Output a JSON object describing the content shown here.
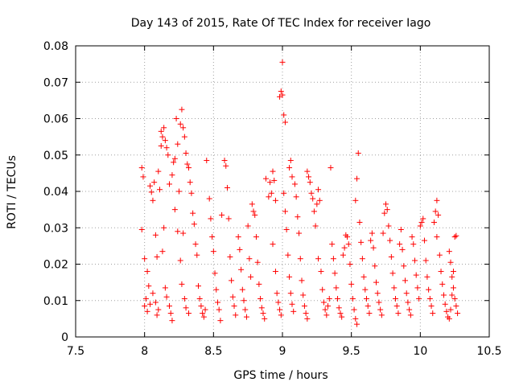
{
  "chart_data": {
    "type": "scatter",
    "title": "Day 143 of 2015, Rate Of TEC Index for receiver Iago",
    "xlabel": "GPS time / hours",
    "ylabel": "ROTI / TECUs",
    "xlim": [
      7.5,
      10.5
    ],
    "ylim": [
      0,
      0.08
    ],
    "x_ticks": [
      "7.5",
      "8",
      "8.5",
      "9",
      "9.5",
      "10",
      "10.5"
    ],
    "y_ticks": [
      "0",
      "0.01",
      "0.02",
      "0.03",
      "0.04",
      "0.05",
      "0.06",
      "0.07",
      "0.08"
    ],
    "grid": true,
    "marker": "+",
    "color": "#ff0000",
    "series": [
      {
        "points": [
          [
            7.98,
            0.0465
          ],
          [
            7.99,
            0.044
          ],
          [
            8.0,
            0.0215
          ],
          [
            7.98,
            0.0295
          ],
          [
            8.02,
            0.018
          ],
          [
            8.03,
            0.014
          ],
          [
            8.01,
            0.0105
          ],
          [
            8.0,
            0.0085
          ],
          [
            8.02,
            0.007
          ],
          [
            8.04,
            0.009
          ],
          [
            8.05,
            0.0398
          ],
          [
            8.06,
            0.0375
          ],
          [
            8.04,
            0.0415
          ],
          [
            8.07,
            0.0425
          ],
          [
            8.08,
            0.028
          ],
          [
            8.09,
            0.022
          ],
          [
            8.06,
            0.012
          ],
          [
            8.08,
            0.0095
          ],
          [
            8.1,
            0.0075
          ],
          [
            8.09,
            0.006
          ],
          [
            8.1,
            0.0455
          ],
          [
            8.11,
            0.0405
          ],
          [
            8.12,
            0.0525
          ],
          [
            8.12,
            0.0565
          ],
          [
            8.13,
            0.055
          ],
          [
            8.14,
            0.0575
          ],
          [
            8.15,
            0.054
          ],
          [
            8.16,
            0.052
          ],
          [
            8.17,
            0.05
          ],
          [
            8.14,
            0.03
          ],
          [
            8.13,
            0.0235
          ],
          [
            8.15,
            0.0135
          ],
          [
            8.16,
            0.011
          ],
          [
            8.18,
            0.0085
          ],
          [
            8.19,
            0.0065
          ],
          [
            8.2,
            0.0045
          ],
          [
            8.18,
            0.042
          ],
          [
            8.2,
            0.0445
          ],
          [
            8.21,
            0.048
          ],
          [
            8.22,
            0.049
          ],
          [
            8.23,
            0.06
          ],
          [
            8.24,
            0.053
          ],
          [
            8.25,
            0.04
          ],
          [
            8.26,
            0.0585
          ],
          [
            8.27,
            0.0625
          ],
          [
            8.28,
            0.0575
          ],
          [
            8.29,
            0.055
          ],
          [
            8.3,
            0.0505
          ],
          [
            8.31,
            0.0475
          ],
          [
            8.32,
            0.0465
          ],
          [
            8.22,
            0.035
          ],
          [
            8.24,
            0.029
          ],
          [
            8.26,
            0.021
          ],
          [
            8.27,
            0.0145
          ],
          [
            8.29,
            0.0105
          ],
          [
            8.3,
            0.008
          ],
          [
            8.32,
            0.0065
          ],
          [
            8.28,
            0.0285
          ],
          [
            8.33,
            0.0425
          ],
          [
            8.34,
            0.0395
          ],
          [
            8.35,
            0.034
          ],
          [
            8.36,
            0.031
          ],
          [
            8.37,
            0.0255
          ],
          [
            8.38,
            0.0225
          ],
          [
            8.39,
            0.014
          ],
          [
            8.4,
            0.0105
          ],
          [
            8.41,
            0.0085
          ],
          [
            8.42,
            0.0065
          ],
          [
            8.43,
            0.0055
          ],
          [
            8.44,
            0.0075
          ],
          [
            8.45,
            0.0485
          ],
          [
            8.47,
            0.038
          ],
          [
            8.48,
            0.0325
          ],
          [
            8.49,
            0.0275
          ],
          [
            8.5,
            0.0235
          ],
          [
            8.51,
            0.0175
          ],
          [
            8.52,
            0.013
          ],
          [
            8.53,
            0.0095
          ],
          [
            8.54,
            0.0075
          ],
          [
            8.55,
            0.0045
          ],
          [
            8.56,
            0.0335
          ],
          [
            8.58,
            0.0485
          ],
          [
            8.59,
            0.047
          ],
          [
            8.6,
            0.041
          ],
          [
            8.61,
            0.0325
          ],
          [
            8.62,
            0.022
          ],
          [
            8.63,
            0.0155
          ],
          [
            8.64,
            0.011
          ],
          [
            8.65,
            0.0085
          ],
          [
            8.66,
            0.006
          ],
          [
            8.68,
            0.0275
          ],
          [
            8.69,
            0.024
          ],
          [
            8.7,
            0.0185
          ],
          [
            8.71,
            0.013
          ],
          [
            8.72,
            0.01
          ],
          [
            8.73,
            0.0075
          ],
          [
            8.74,
            0.0055
          ],
          [
            8.75,
            0.0305
          ],
          [
            8.76,
            0.0215
          ],
          [
            8.77,
            0.0165
          ],
          [
            8.78,
            0.0365
          ],
          [
            8.79,
            0.0345
          ],
          [
            8.8,
            0.0335
          ],
          [
            8.81,
            0.0275
          ],
          [
            8.82,
            0.0205
          ],
          [
            8.83,
            0.0145
          ],
          [
            8.84,
            0.0105
          ],
          [
            8.85,
            0.008
          ],
          [
            8.86,
            0.0065
          ],
          [
            8.87,
            0.005
          ],
          [
            8.88,
            0.0435
          ],
          [
            8.9,
            0.0385
          ],
          [
            8.91,
            0.0425
          ],
          [
            8.92,
            0.0395
          ],
          [
            8.93,
            0.0455
          ],
          [
            8.94,
            0.043
          ],
          [
            8.95,
            0.0375
          ],
          [
            8.93,
            0.0255
          ],
          [
            8.95,
            0.018
          ],
          [
            8.96,
            0.012
          ],
          [
            8.97,
            0.0095
          ],
          [
            8.98,
            0.0075
          ],
          [
            8.99,
            0.006
          ],
          [
            8.98,
            0.066
          ],
          [
            8.99,
            0.0675
          ],
          [
            9.0,
            0.0755
          ],
          [
            9.01,
            0.061
          ],
          [
            9.02,
            0.059
          ],
          [
            9.0,
            0.0665
          ],
          [
            9.01,
            0.0395
          ],
          [
            9.02,
            0.0345
          ],
          [
            9.03,
            0.0295
          ],
          [
            9.04,
            0.0225
          ],
          [
            9.05,
            0.0165
          ],
          [
            9.06,
            0.012
          ],
          [
            9.07,
            0.009
          ],
          [
            9.08,
            0.007
          ],
          [
            9.05,
            0.0465
          ],
          [
            9.06,
            0.0485
          ],
          [
            9.07,
            0.044
          ],
          [
            9.09,
            0.042
          ],
          [
            9.1,
            0.0385
          ],
          [
            9.11,
            0.033
          ],
          [
            9.12,
            0.0285
          ],
          [
            9.13,
            0.0215
          ],
          [
            9.14,
            0.0155
          ],
          [
            9.15,
            0.0115
          ],
          [
            9.16,
            0.0085
          ],
          [
            9.17,
            0.0065
          ],
          [
            9.18,
            0.005
          ],
          [
            9.18,
            0.0455
          ],
          [
            9.19,
            0.044
          ],
          [
            9.2,
            0.0425
          ],
          [
            9.21,
            0.0395
          ],
          [
            9.22,
            0.038
          ],
          [
            9.23,
            0.0345
          ],
          [
            9.24,
            0.0305
          ],
          [
            9.25,
            0.0365
          ],
          [
            9.26,
            0.0405
          ],
          [
            9.27,
            0.0375
          ],
          [
            9.26,
            0.0215
          ],
          [
            9.28,
            0.018
          ],
          [
            9.29,
            0.013
          ],
          [
            9.3,
            0.0095
          ],
          [
            9.31,
            0.0075
          ],
          [
            9.32,
            0.006
          ],
          [
            9.33,
            0.0085
          ],
          [
            9.34,
            0.0105
          ],
          [
            9.35,
            0.0465
          ],
          [
            9.36,
            0.0255
          ],
          [
            9.37,
            0.0215
          ],
          [
            9.38,
            0.0175
          ],
          [
            9.39,
            0.0135
          ],
          [
            9.4,
            0.0105
          ],
          [
            9.41,
            0.008
          ],
          [
            9.42,
            0.0065
          ],
          [
            9.43,
            0.0055
          ],
          [
            9.44,
            0.0225
          ],
          [
            9.45,
            0.0245
          ],
          [
            9.46,
            0.028
          ],
          [
            9.47,
            0.0275
          ],
          [
            9.48,
            0.0255
          ],
          [
            9.49,
            0.02
          ],
          [
            9.5,
            0.0145
          ],
          [
            9.51,
            0.0105
          ],
          [
            9.52,
            0.0075
          ],
          [
            9.53,
            0.005
          ],
          [
            9.54,
            0.0035
          ],
          [
            9.55,
            0.0505
          ],
          [
            9.54,
            0.0435
          ],
          [
            9.53,
            0.0375
          ],
          [
            9.56,
            0.0315
          ],
          [
            9.57,
            0.026
          ],
          [
            9.58,
            0.0215
          ],
          [
            9.59,
            0.0165
          ],
          [
            9.6,
            0.013
          ],
          [
            9.61,
            0.0105
          ],
          [
            9.62,
            0.0085
          ],
          [
            9.63,
            0.0065
          ],
          [
            9.64,
            0.0265
          ],
          [
            9.65,
            0.0285
          ],
          [
            9.66,
            0.0245
          ],
          [
            9.67,
            0.0195
          ],
          [
            9.68,
            0.015
          ],
          [
            9.69,
            0.012
          ],
          [
            9.7,
            0.0095
          ],
          [
            9.71,
            0.0075
          ],
          [
            9.72,
            0.006
          ],
          [
            9.73,
            0.0285
          ],
          [
            9.74,
            0.034
          ],
          [
            9.75,
            0.0365
          ],
          [
            9.76,
            0.035
          ],
          [
            9.77,
            0.0305
          ],
          [
            9.78,
            0.0265
          ],
          [
            9.79,
            0.022
          ],
          [
            9.8,
            0.0175
          ],
          [
            9.81,
            0.0135
          ],
          [
            9.82,
            0.0105
          ],
          [
            9.83,
            0.0085
          ],
          [
            9.84,
            0.0065
          ],
          [
            9.85,
            0.0255
          ],
          [
            9.86,
            0.0295
          ],
          [
            9.87,
            0.024
          ],
          [
            9.88,
            0.0195
          ],
          [
            9.89,
            0.0155
          ],
          [
            9.9,
            0.012
          ],
          [
            9.91,
            0.0095
          ],
          [
            9.92,
            0.0075
          ],
          [
            9.93,
            0.006
          ],
          [
            9.94,
            0.0275
          ],
          [
            9.95,
            0.0255
          ],
          [
            9.96,
            0.021
          ],
          [
            9.97,
            0.017
          ],
          [
            9.98,
            0.0135
          ],
          [
            9.99,
            0.0105
          ],
          [
            10.0,
            0.0305
          ],
          [
            10.01,
            0.0315
          ],
          [
            10.02,
            0.0325
          ],
          [
            10.03,
            0.0265
          ],
          [
            10.04,
            0.021
          ],
          [
            10.05,
            0.0165
          ],
          [
            10.06,
            0.013
          ],
          [
            10.07,
            0.0105
          ],
          [
            10.08,
            0.0085
          ],
          [
            10.09,
            0.0065
          ],
          [
            10.1,
            0.0315
          ],
          [
            10.11,
            0.0345
          ],
          [
            10.12,
            0.0375
          ],
          [
            10.13,
            0.0335
          ],
          [
            10.12,
            0.0275
          ],
          [
            10.14,
            0.0225
          ],
          [
            10.15,
            0.018
          ],
          [
            10.16,
            0.0145
          ],
          [
            10.17,
            0.0115
          ],
          [
            10.18,
            0.009
          ],
          [
            10.19,
            0.007
          ],
          [
            10.2,
            0.0055
          ],
          [
            10.21,
            0.0235
          ],
          [
            10.22,
            0.0205
          ],
          [
            10.23,
            0.0165
          ],
          [
            10.24,
            0.0135
          ],
          [
            10.25,
            0.0105
          ],
          [
            10.26,
            0.0085
          ],
          [
            10.27,
            0.0065
          ],
          [
            10.25,
            0.0275
          ],
          [
            10.26,
            0.0278
          ],
          [
            10.24,
            0.018
          ],
          [
            10.23,
            0.0115
          ],
          [
            10.22,
            0.0075
          ],
          [
            10.21,
            0.005
          ]
        ]
      }
    ]
  }
}
